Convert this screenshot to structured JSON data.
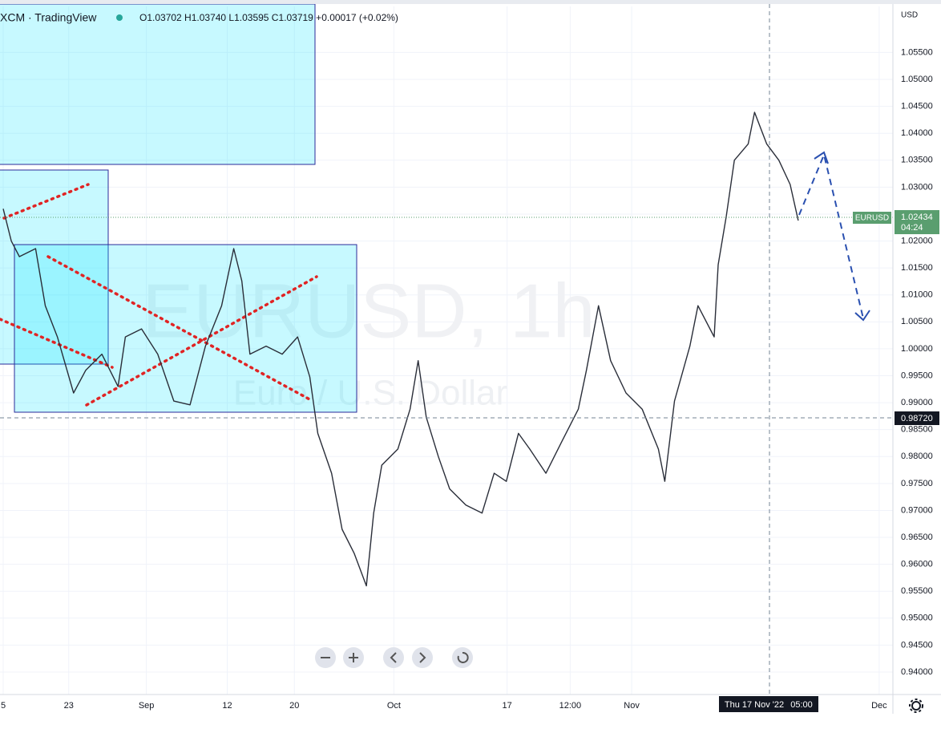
{
  "ui": {
    "symbol": "XCM · TradingView",
    "ohlc": "O1.03702 H1.03740 L1.03595 C1.03719 +0.00017 (+0.02%)",
    "currency": "USD",
    "watermark": "EURUSD, 1h",
    "watermark_sub": "Euro / U.S. Dollar",
    "price_tag": "EURUSD",
    "last_price": "1.02434",
    "countdown": "04:24",
    "crosshair_price": "0.98720",
    "crosshair_date": "Thu 17 Nov '22",
    "crosshair_time": "05:00"
  },
  "chart_data": {
    "type": "line",
    "color": "#2a2e39",
    "x": [
      0,
      1,
      2,
      4,
      5.2,
      6.7,
      8.7,
      10.2,
      12.2,
      14.2,
      15.1,
      17.1,
      19.1,
      21.1,
      23.1,
      25,
      27,
      28.5,
      29.5,
      30.5,
      32.5,
      34.5,
      36.4,
      37.9,
      38.9,
      40.6,
      41.9,
      43.4,
      44.9,
      45.8,
      46.8,
      48.8,
      50.3,
      51.3,
      52.3,
      53.8,
      55.2,
      57.2,
      59.2,
      60.7,
      62.2,
      63.7,
      65.1,
      67.1,
      69.1,
      71.1,
      72.1,
      73.6,
      75.1,
      77,
      79,
      81,
      81.8,
      83,
      84.9,
      85.9,
      87.9,
      88.4,
      89.4,
      90.4,
      92.1,
      92.9,
      94.4,
      95.9,
      97.3,
      98.3
    ],
    "values": [
      1.026,
      1.02,
      1.0171,
      1.0186,
      1.008,
      1.0022,
      0.9918,
      0.996,
      0.999,
      0.993,
      1.0022,
      1.0037,
      0.999,
      0.9903,
      0.9896,
      1.0005,
      1.008,
      1.0186,
      1.0126,
      0.999,
      1.0005,
      0.999,
      1.0022,
      0.9948,
      0.9843,
      0.9769,
      0.9665,
      0.962,
      0.956,
      0.9695,
      0.9784,
      0.9814,
      0.9888,
      0.9978,
      0.9873,
      0.98,
      0.974,
      0.971,
      0.9695,
      0.9769,
      0.9754,
      0.9843,
      0.9814,
      0.9769,
      0.9829,
      0.9888,
      0.996,
      1.008,
      0.9978,
      0.9918,
      0.9888,
      0.9814,
      0.9754,
      0.9903,
      1.0005,
      1.008,
      1.0022,
      1.0156,
      1.0246,
      1.035,
      1.038,
      1.0439,
      1.038,
      1.035,
      1.0305,
      1.0238
    ],
    "xlim": [
      -0.2,
      110
    ],
    "ylim": [
      0.93583,
      1.06355
    ],
    "xticks": [
      {
        "value": 0,
        "label": "5"
      },
      {
        "value": 8.1,
        "label": "23"
      },
      {
        "value": 17.7,
        "label": "Sep"
      },
      {
        "value": 27.7,
        "label": "12"
      },
      {
        "value": 36,
        "label": "20"
      },
      {
        "value": 48.3,
        "label": "Oct"
      },
      {
        "value": 62.3,
        "label": "17"
      },
      {
        "value": 70.1,
        "label": "12:00"
      },
      {
        "value": 77.7,
        "label": "Nov"
      },
      {
        "value": 108.3,
        "label": "Dec"
      }
    ],
    "yticks": [
      {
        "value": 0.94,
        "label": "0.94000"
      },
      {
        "value": 0.945,
        "label": "0.94500"
      },
      {
        "value": 0.95,
        "label": "0.95000"
      },
      {
        "value": 0.955,
        "label": "0.95500"
      },
      {
        "value": 0.96,
        "label": "0.96000"
      },
      {
        "value": 0.965,
        "label": "0.96500"
      },
      {
        "value": 0.97,
        "label": "0.97000"
      },
      {
        "value": 0.975,
        "label": "0.97500"
      },
      {
        "value": 0.98,
        "label": "0.98000"
      },
      {
        "value": 0.985,
        "label": "0.98500"
      },
      {
        "value": 0.99,
        "label": "0.99000"
      },
      {
        "value": 0.995,
        "label": "0.99500"
      },
      {
        "value": 1.0,
        "label": "1.00000"
      },
      {
        "value": 1.005,
        "label": "1.00500"
      },
      {
        "value": 1.01,
        "label": "1.01000"
      },
      {
        "value": 1.015,
        "label": "1.01500"
      },
      {
        "value": 1.02,
        "label": "1.02000"
      },
      {
        "value": 1.025,
        "label": "1.02500"
      },
      {
        "value": 1.03,
        "label": "1.03000"
      },
      {
        "value": 1.035,
        "label": "1.03500"
      },
      {
        "value": 1.04,
        "label": "1.04000"
      },
      {
        "value": 1.045,
        "label": "1.04500"
      },
      {
        "value": 1.05,
        "label": "1.05000"
      },
      {
        "value": 1.055,
        "label": "1.05500"
      }
    ],
    "grid": true
  }
}
